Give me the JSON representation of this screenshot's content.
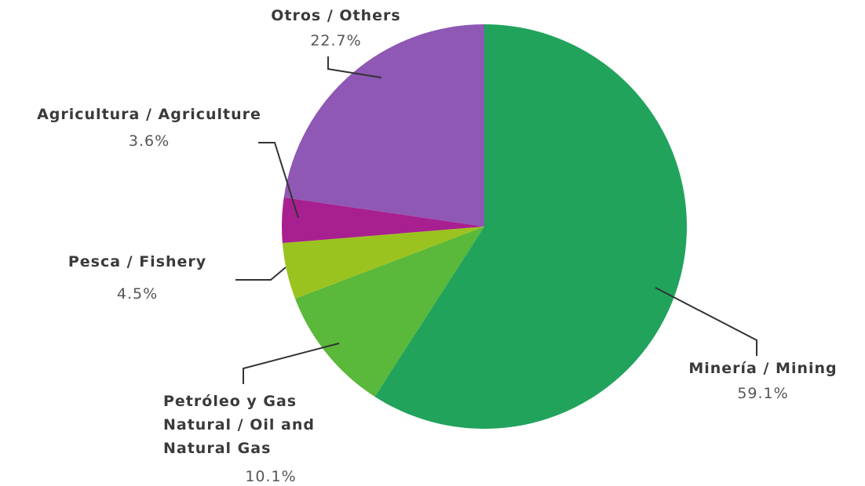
{
  "chart_data": {
    "type": "pie",
    "title": "",
    "start": "top, clockwise",
    "slices": [
      {
        "label": "Minería / Mining",
        "lines": [
          "Minería / Mining"
        ],
        "value": 59.1,
        "value_text": "59.1%",
        "color": "#21a35c"
      },
      {
        "label": "Petróleo y Gas Natural / Oil and Natural Gas",
        "lines": [
          "Petróleo y Gas",
          "Natural / Oil and",
          "Natural Gas"
        ],
        "value": 10.1,
        "value_text": "10.1%",
        "color": "#5ab83a"
      },
      {
        "label": "Pesca / Fishery",
        "lines": [
          "Pesca / Fishery"
        ],
        "value": 4.5,
        "value_text": "4.5%",
        "color": "#9bc31f"
      },
      {
        "label": "Agricultura / Agriculture",
        "lines": [
          "Agricultura / Agriculture"
        ],
        "value": 3.6,
        "value_text": "3.6%",
        "color": "#a8208f"
      },
      {
        "label": "Otros / Others",
        "lines": [
          "Otros / Others"
        ],
        "value": 22.7,
        "value_text": "22.7%",
        "color": "#8e58b4"
      }
    ]
  }
}
